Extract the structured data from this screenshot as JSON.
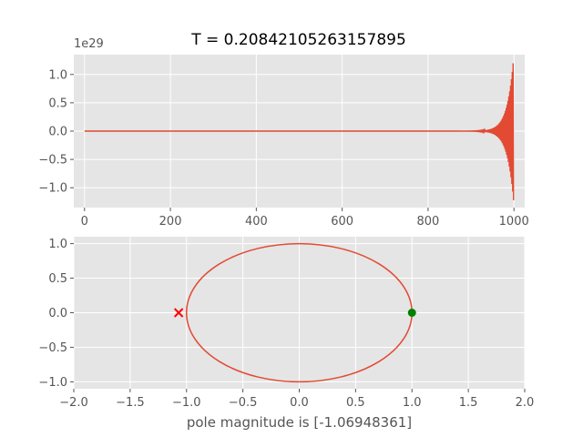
{
  "figure": {
    "title": "T = 0.20842105263157895",
    "background": "#ffffff",
    "axes_face": "#e5e5e5",
    "grid_color": "#ffffff",
    "tick_color": "#555555",
    "line_color": "#e24a33"
  },
  "chart_data": [
    {
      "type": "line",
      "name": "impulse-response",
      "title": "T = 0.20842105263157895",
      "xlabel": "",
      "ylabel": "",
      "offset_label": "1e29",
      "xlim": [
        -25,
        1025
      ],
      "ylim": [
        -1.35,
        1.35
      ],
      "xticks": [
        0,
        200,
        400,
        600,
        800,
        1000
      ],
      "xtick_labels": [
        "0",
        "200",
        "400",
        "600",
        "800",
        "1000"
      ],
      "yticks": [
        -1.0,
        -0.5,
        0.0,
        0.5,
        1.0
      ],
      "ytick_labels": [
        "−1.0",
        "−0.5",
        "0.0",
        "0.5",
        "1.0"
      ],
      "grid": true,
      "samples": 1000,
      "peak_value": 1.28,
      "min_value": -1.22,
      "color": "#e24a33"
    },
    {
      "type": "scatter",
      "name": "pole-zero-plot",
      "xlabel": "pole magnitude is [-1.06948361]",
      "ylabel": "",
      "xlim": [
        -2.0,
        2.0
      ],
      "ylim": [
        -1.1,
        1.1
      ],
      "xticks": [
        -2.0,
        -1.5,
        -1.0,
        -0.5,
        0.0,
        0.5,
        1.0,
        1.5,
        2.0
      ],
      "xtick_labels": [
        "−2.0",
        "−1.5",
        "−1.0",
        "−0.5",
        "0.0",
        "0.5",
        "1.0",
        "1.5",
        "2.0"
      ],
      "yticks": [
        -1.0,
        -0.5,
        0.0,
        0.5,
        1.0
      ],
      "ytick_labels": [
        "−1.0",
        "−0.5",
        "0.0",
        "0.5",
        "1.0"
      ],
      "grid": true,
      "unit_circle": {
        "center": [
          0,
          0
        ],
        "radius": 1.0,
        "color": "#e24a33"
      },
      "poles": [
        {
          "x": -1.06948361,
          "y": 0.0,
          "marker": "x",
          "color": "#ff0000"
        }
      ],
      "zeros": [
        {
          "x": 1.0,
          "y": 0.0,
          "marker": "o",
          "color": "#008000"
        }
      ]
    }
  ]
}
